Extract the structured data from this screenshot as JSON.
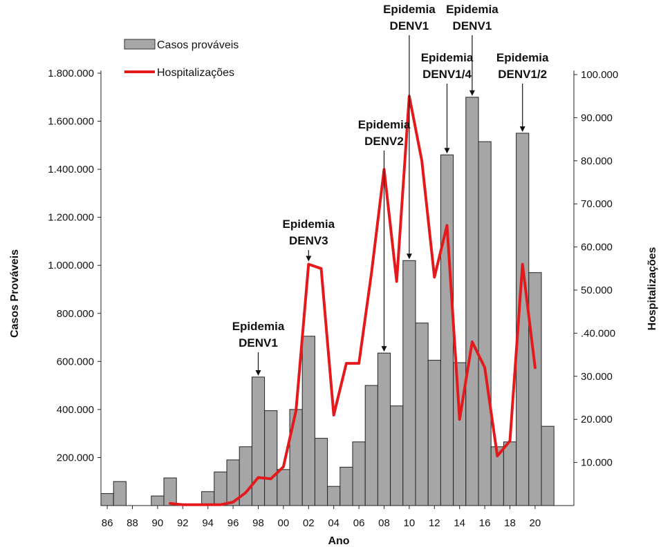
{
  "chart_data": {
    "type": "bar+line",
    "title": "",
    "xlabel": "Ano",
    "ylabel_left": "Casos Prováveis",
    "ylabel_right": "Hospitalizações",
    "ylim_left": [
      0,
      1800000
    ],
    "ylim_right": [
      0,
      100000
    ],
    "grid": false,
    "legend_position": "top-left",
    "years": [
      1986,
      1987,
      1988,
      1989,
      1990,
      1991,
      1992,
      1993,
      1994,
      1995,
      1996,
      1997,
      1998,
      1999,
      2000,
      2001,
      2002,
      2003,
      2004,
      2005,
      2006,
      2007,
      2008,
      2009,
      2010,
      2011,
      2012,
      2013,
      2014,
      2015,
      2016,
      2017,
      2018,
      2019,
      2020,
      2021
    ],
    "x_tick_labels": [
      "86",
      "88",
      "90",
      "92",
      "94",
      "96",
      "98",
      "00",
      "02",
      "04",
      "06",
      "08",
      "10",
      "12",
      "14",
      "16",
      "18",
      "20"
    ],
    "left_tick_labels": [
      "200.000",
      "400.000",
      "600.000",
      "800.000",
      "1.000.000",
      "1.200.000",
      "1.400.000",
      "1.600.000",
      "1.800.000"
    ],
    "left_tick_values": [
      200000,
      400000,
      600000,
      800000,
      1000000,
      1200000,
      1400000,
      1600000,
      1800000
    ],
    "right_tick_labels": [
      "10.000",
      "20.000",
      "30.000",
      ".40.000",
      "50.000",
      "60.000",
      "70.000",
      "80.000",
      "90.000",
      "100.000"
    ],
    "right_tick_values": [
      10000,
      20000,
      30000,
      40000,
      50000,
      60000,
      70000,
      80000,
      90000,
      100000
    ],
    "series": [
      {
        "name": "Casos prováveis",
        "type": "bar",
        "axis": "left",
        "color": "#a6a6a6",
        "values": [
          50000,
          100000,
          0,
          0,
          40000,
          115000,
          0,
          0,
          58000,
          140000,
          190000,
          245000,
          535000,
          395000,
          150000,
          400000,
          705000,
          280000,
          80000,
          160000,
          265000,
          500000,
          635000,
          415000,
          1020000,
          760000,
          605000,
          1460000,
          595000,
          1700000,
          1515000,
          245000,
          265000,
          1550000,
          970000,
          330000
        ]
      },
      {
        "name": "Hospitalizações",
        "type": "line",
        "axis": "right",
        "color": "#e31a1c",
        "values": [
          null,
          null,
          null,
          null,
          null,
          500,
          200,
          200,
          200,
          200,
          800,
          3000,
          6500,
          6200,
          9000,
          22000,
          56000,
          55000,
          21000,
          33000,
          33000,
          54000,
          78000,
          52000,
          95000,
          80000,
          53000,
          65000,
          20000,
          38000,
          32000,
          11500,
          15000,
          56000,
          32000,
          null
        ]
      }
    ],
    "annotations": [
      {
        "year": 1998,
        "lines": [
          "Epidemia",
          "DENV1"
        ]
      },
      {
        "year": 2002,
        "lines": [
          "Epidemia",
          "DENV3"
        ]
      },
      {
        "year": 2008,
        "lines": [
          "Epidemia",
          "DENV2"
        ]
      },
      {
        "year": 2010,
        "lines": [
          "Epidemia",
          "DENV1"
        ]
      },
      {
        "year": 2013,
        "lines": [
          "Epidemia",
          "DENV1/4"
        ]
      },
      {
        "year": 2015,
        "lines": [
          "Epidemia",
          "DENV1"
        ]
      },
      {
        "year": 2019,
        "lines": [
          "Epidemia",
          "DENV1/2"
        ]
      }
    ]
  }
}
